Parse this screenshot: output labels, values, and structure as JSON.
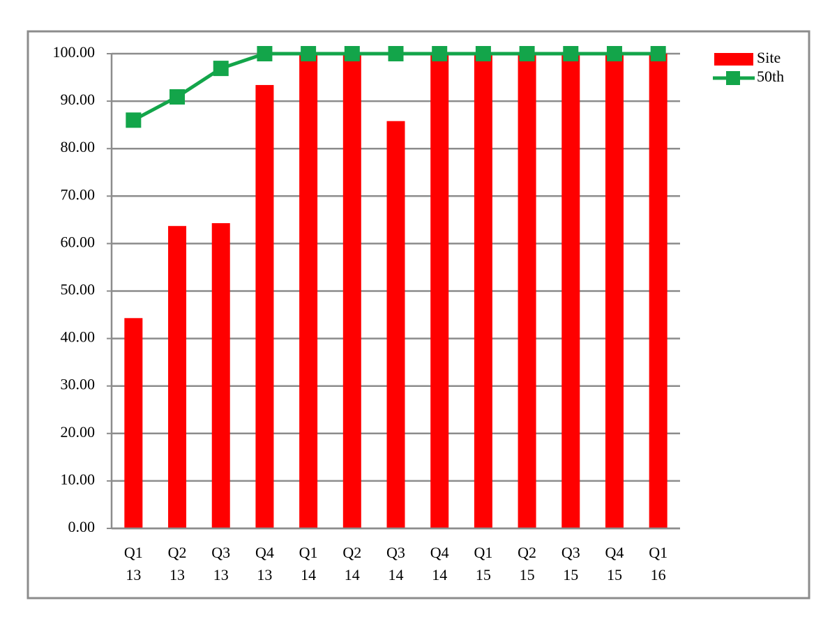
{
  "chart_data": {
    "type": "bar-line",
    "categories": [
      [
        "Q1",
        "13"
      ],
      [
        "Q2",
        "13"
      ],
      [
        "Q3",
        "13"
      ],
      [
        "Q4",
        "13"
      ],
      [
        "Q1",
        "14"
      ],
      [
        "Q2",
        "14"
      ],
      [
        "Q3",
        "14"
      ],
      [
        "Q4",
        "14"
      ],
      [
        "Q1",
        "15"
      ],
      [
        "Q2",
        "15"
      ],
      [
        "Q3",
        "15"
      ],
      [
        "Q4",
        "15"
      ],
      [
        "Q1",
        "16"
      ]
    ],
    "series": [
      {
        "name": "Site",
        "type": "bar",
        "color": "#ff0000",
        "values": [
          44.3,
          63.7,
          64.3,
          93.4,
          100,
          100,
          85.8,
          100,
          100,
          100,
          100,
          100,
          100
        ]
      },
      {
        "name": "50th",
        "type": "line",
        "color": "#13a54a",
        "values": [
          86.0,
          90.9,
          96.9,
          100,
          100,
          100,
          100,
          100,
          100,
          100,
          100,
          100,
          100
        ]
      }
    ],
    "ylim": [
      0,
      100
    ],
    "yticks": [
      {
        "value": 0,
        "label": "0.00"
      },
      {
        "value": 10,
        "label": "10.00"
      },
      {
        "value": 20,
        "label": "20.00"
      },
      {
        "value": 30,
        "label": "30.00"
      },
      {
        "value": 40,
        "label": "40.00"
      },
      {
        "value": 50,
        "label": "50.00"
      },
      {
        "value": 60,
        "label": "60.00"
      },
      {
        "value": 70,
        "label": "70.00"
      },
      {
        "value": 80,
        "label": "80.00"
      },
      {
        "value": 90,
        "label": "90.00"
      },
      {
        "value": 100,
        "label": "100.00"
      }
    ],
    "grid": true,
    "legend": "right"
  }
}
